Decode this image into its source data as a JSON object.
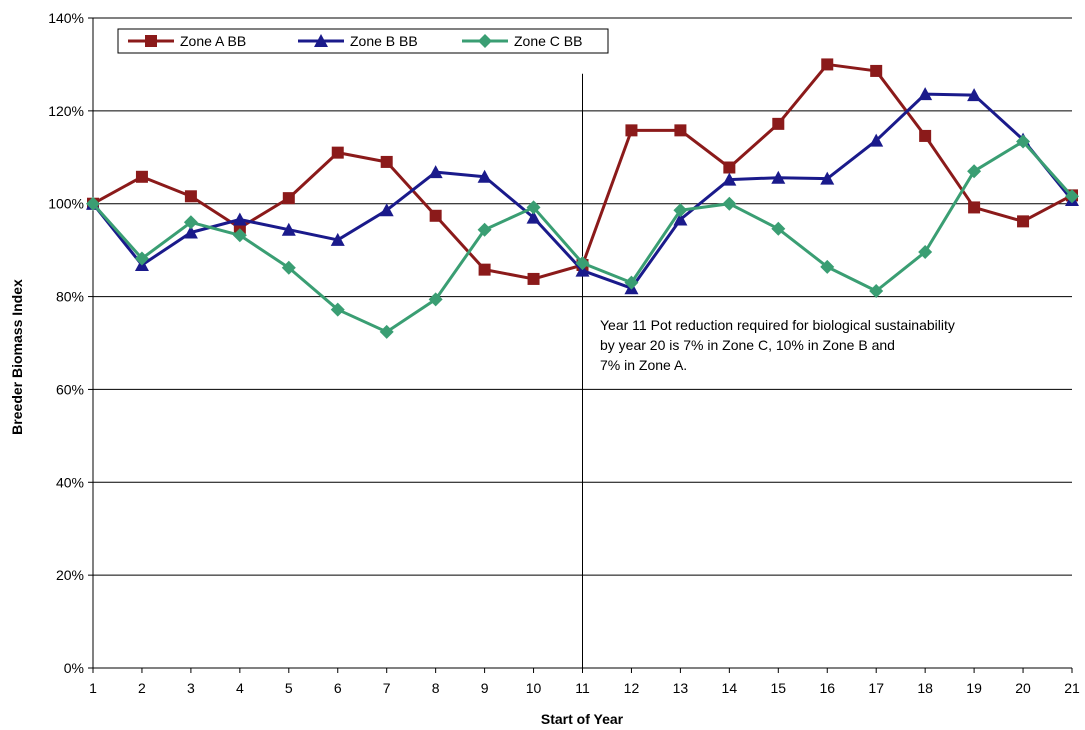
{
  "chart_data": {
    "type": "line",
    "xlabel": "Start  of Year",
    "ylabel": "Breeder Biomass Index",
    "x": [
      1,
      2,
      3,
      4,
      5,
      6,
      7,
      8,
      9,
      10,
      11,
      12,
      13,
      14,
      15,
      16,
      17,
      18,
      19,
      20,
      21
    ],
    "xlim": [
      1,
      21
    ],
    "ylim": [
      0,
      140
    ],
    "y_ticks": [
      "0%",
      "20%",
      "40%",
      "60%",
      "80%",
      "100%",
      "120%",
      "140%"
    ],
    "y_tick_values": [
      0,
      20,
      40,
      60,
      80,
      100,
      120,
      140
    ],
    "grid": "horizontal",
    "legend_position": "top-left",
    "series": [
      {
        "name": "Zone A BB",
        "color": "#8B1A1A",
        "marker": "square",
        "values": [
          100,
          105.8,
          101.6,
          94.8,
          101.2,
          111,
          109,
          97.4,
          85.8,
          83.8,
          86.8,
          115.8,
          115.8,
          107.8,
          117.2,
          130,
          128.6,
          114.6,
          99.2,
          96.2,
          101.8
        ]
      },
      {
        "name": "Zone B BB",
        "color": "#1A1A8B",
        "marker": "triangle",
        "values": [
          100,
          86.8,
          93.8,
          96.6,
          94.4,
          92.2,
          98.6,
          106.8,
          105.8,
          97,
          85.6,
          81.8,
          96.6,
          105.2,
          105.6,
          105.4,
          113.6,
          123.6,
          123.4,
          113.8,
          100.8
        ]
      },
      {
        "name": "Zone C BB",
        "color": "#3A9E73",
        "marker": "diamond",
        "values": [
          100,
          88.2,
          96,
          93.2,
          86.2,
          77.2,
          72.4,
          79.4,
          94.4,
          99.2,
          87.2,
          83,
          98.6,
          100,
          94.6,
          86.4,
          81.2,
          89.6,
          107,
          113.4,
          101.6
        ]
      }
    ],
    "vertical_marker_x": 11,
    "annotation": {
      "lines": [
        "Year 11 Pot reduction required for biological sustainability",
        "by year 20 is 7% in Zone C, 10% in Zone B and",
        "7% in Zone A."
      ]
    }
  }
}
